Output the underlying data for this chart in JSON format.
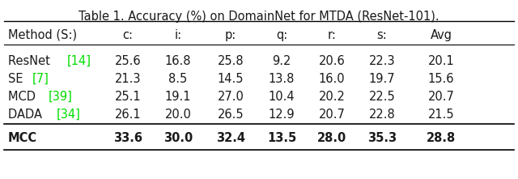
{
  "title": "Table 1. Accuracy (%) on DomainNet for MTDA (ResNet-101).",
  "headers": [
    "Method (S:)",
    "c:",
    "i:",
    "p:",
    "q:",
    "r:",
    "s:",
    "Avg"
  ],
  "rows": [
    {
      "method_plain": "ResNet ",
      "method_ref": "[14]",
      "values": [
        "25.6",
        "16.8",
        "25.8",
        "9.2",
        "20.6",
        "22.3",
        "20.1"
      ],
      "bold": false
    },
    {
      "method_plain": "SE ",
      "method_ref": "[7]",
      "values": [
        "21.3",
        "8.5",
        "14.5",
        "13.8",
        "16.0",
        "19.7",
        "15.6"
      ],
      "bold": false
    },
    {
      "method_plain": "MCD ",
      "method_ref": "[39]",
      "values": [
        "25.1",
        "19.1",
        "27.0",
        "10.4",
        "20.2",
        "22.5",
        "20.7"
      ],
      "bold": false
    },
    {
      "method_plain": "DADA ",
      "method_ref": "[34]",
      "values": [
        "26.1",
        "20.0",
        "26.5",
        "12.9",
        "20.7",
        "22.8",
        "21.5"
      ],
      "bold": false
    },
    {
      "method_plain": "MCC",
      "method_ref": null,
      "values": [
        "33.6",
        "30.0",
        "32.4",
        "13.5",
        "28.0",
        "35.3",
        "28.8"
      ],
      "bold": true
    }
  ],
  "background_color": "#ffffff",
  "text_color": "#1a1a1a",
  "ref_color": "#00dd00",
  "fontsize": 10.5,
  "bold_fontsize": 10.5,
  "title_fontsize": 10.5
}
